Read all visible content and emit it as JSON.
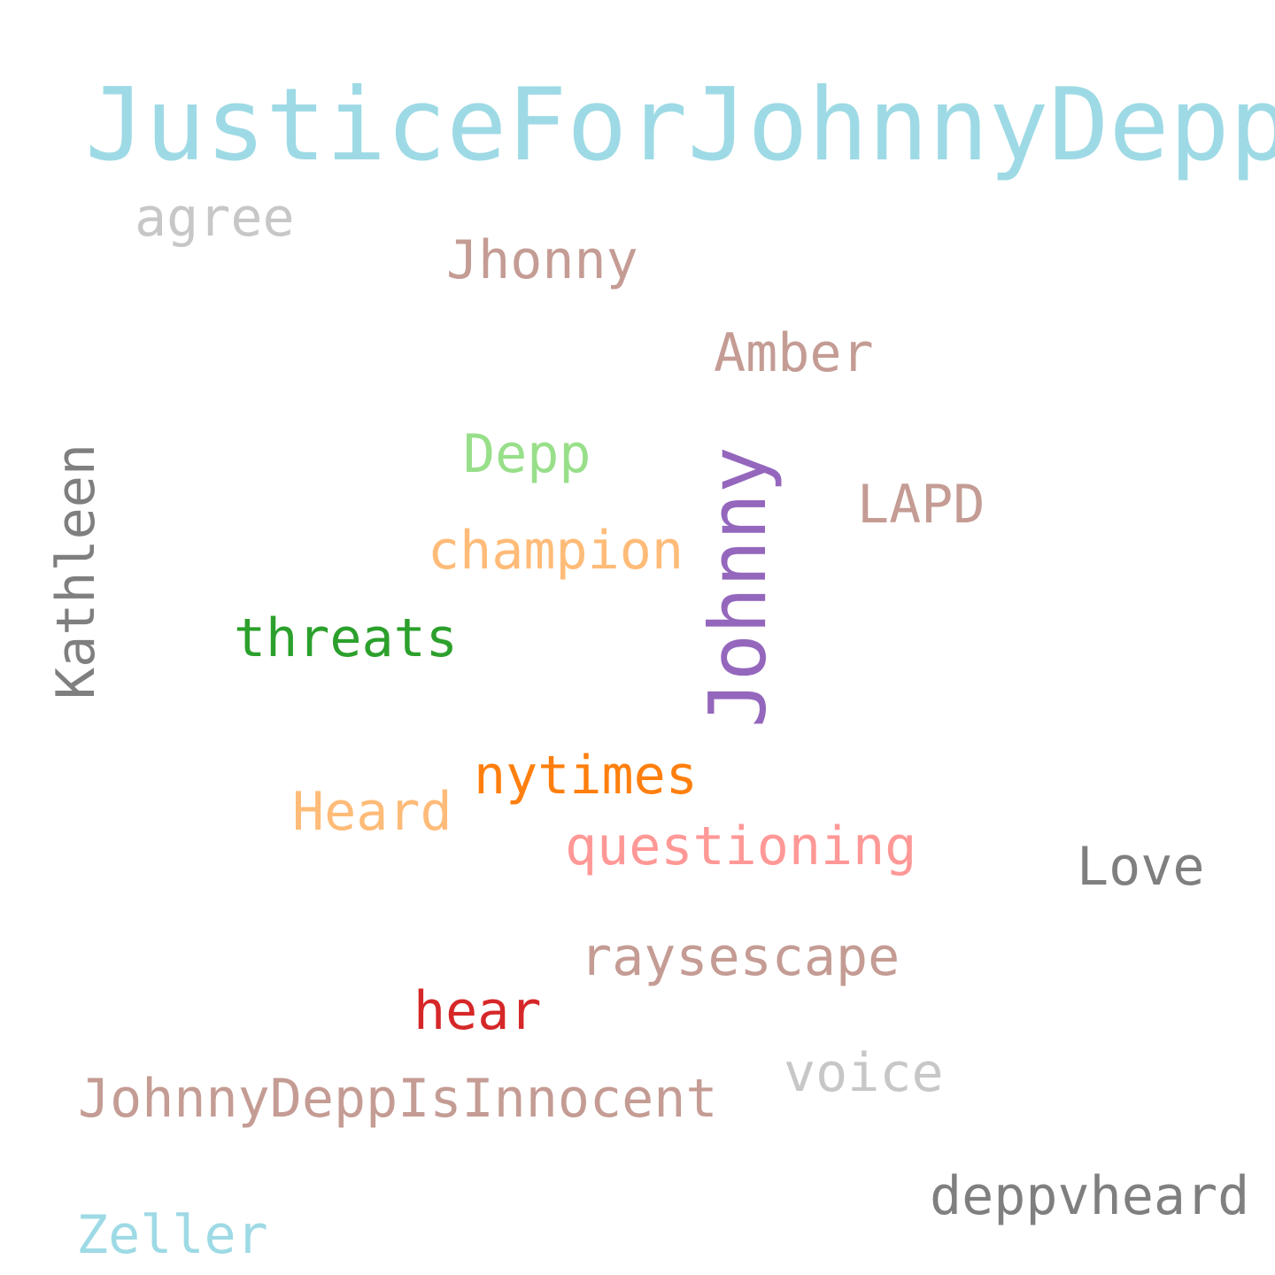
{
  "words": {
    "justice_for_johnny_depp": "JusticeForJohnnyDepp",
    "agree": "agree",
    "jhonny": "Jhonny",
    "amber": "Amber",
    "depp": "Depp",
    "lapd": "LAPD",
    "champion": "champion",
    "threats": "threats",
    "nytimes": "nytimes",
    "heard": "Heard",
    "questioning": "questioning",
    "love": "Love",
    "raysescape": "raysescape",
    "hear": "hear",
    "voice": "voice",
    "johnny_depp_is_innocent": "JohnnyDeppIsInnocent",
    "deppvheard": "deppvheard",
    "zeller": "Zeller",
    "kathleen": "Kathleen",
    "johnny": "Johnny"
  },
  "colors": {
    "light_blue": "#9edae5",
    "light_gray": "#c7c7c7",
    "dusty_rose": "#c49c94",
    "light_green": "#98df8a",
    "light_orange": "#ffbb78",
    "green": "#2ca02c",
    "orange": "#ff7f0e",
    "pink": "#ff9896",
    "gray": "#7f7f7f",
    "red": "#d62728",
    "purple": "#9467bd",
    "background": "#ffffff"
  }
}
